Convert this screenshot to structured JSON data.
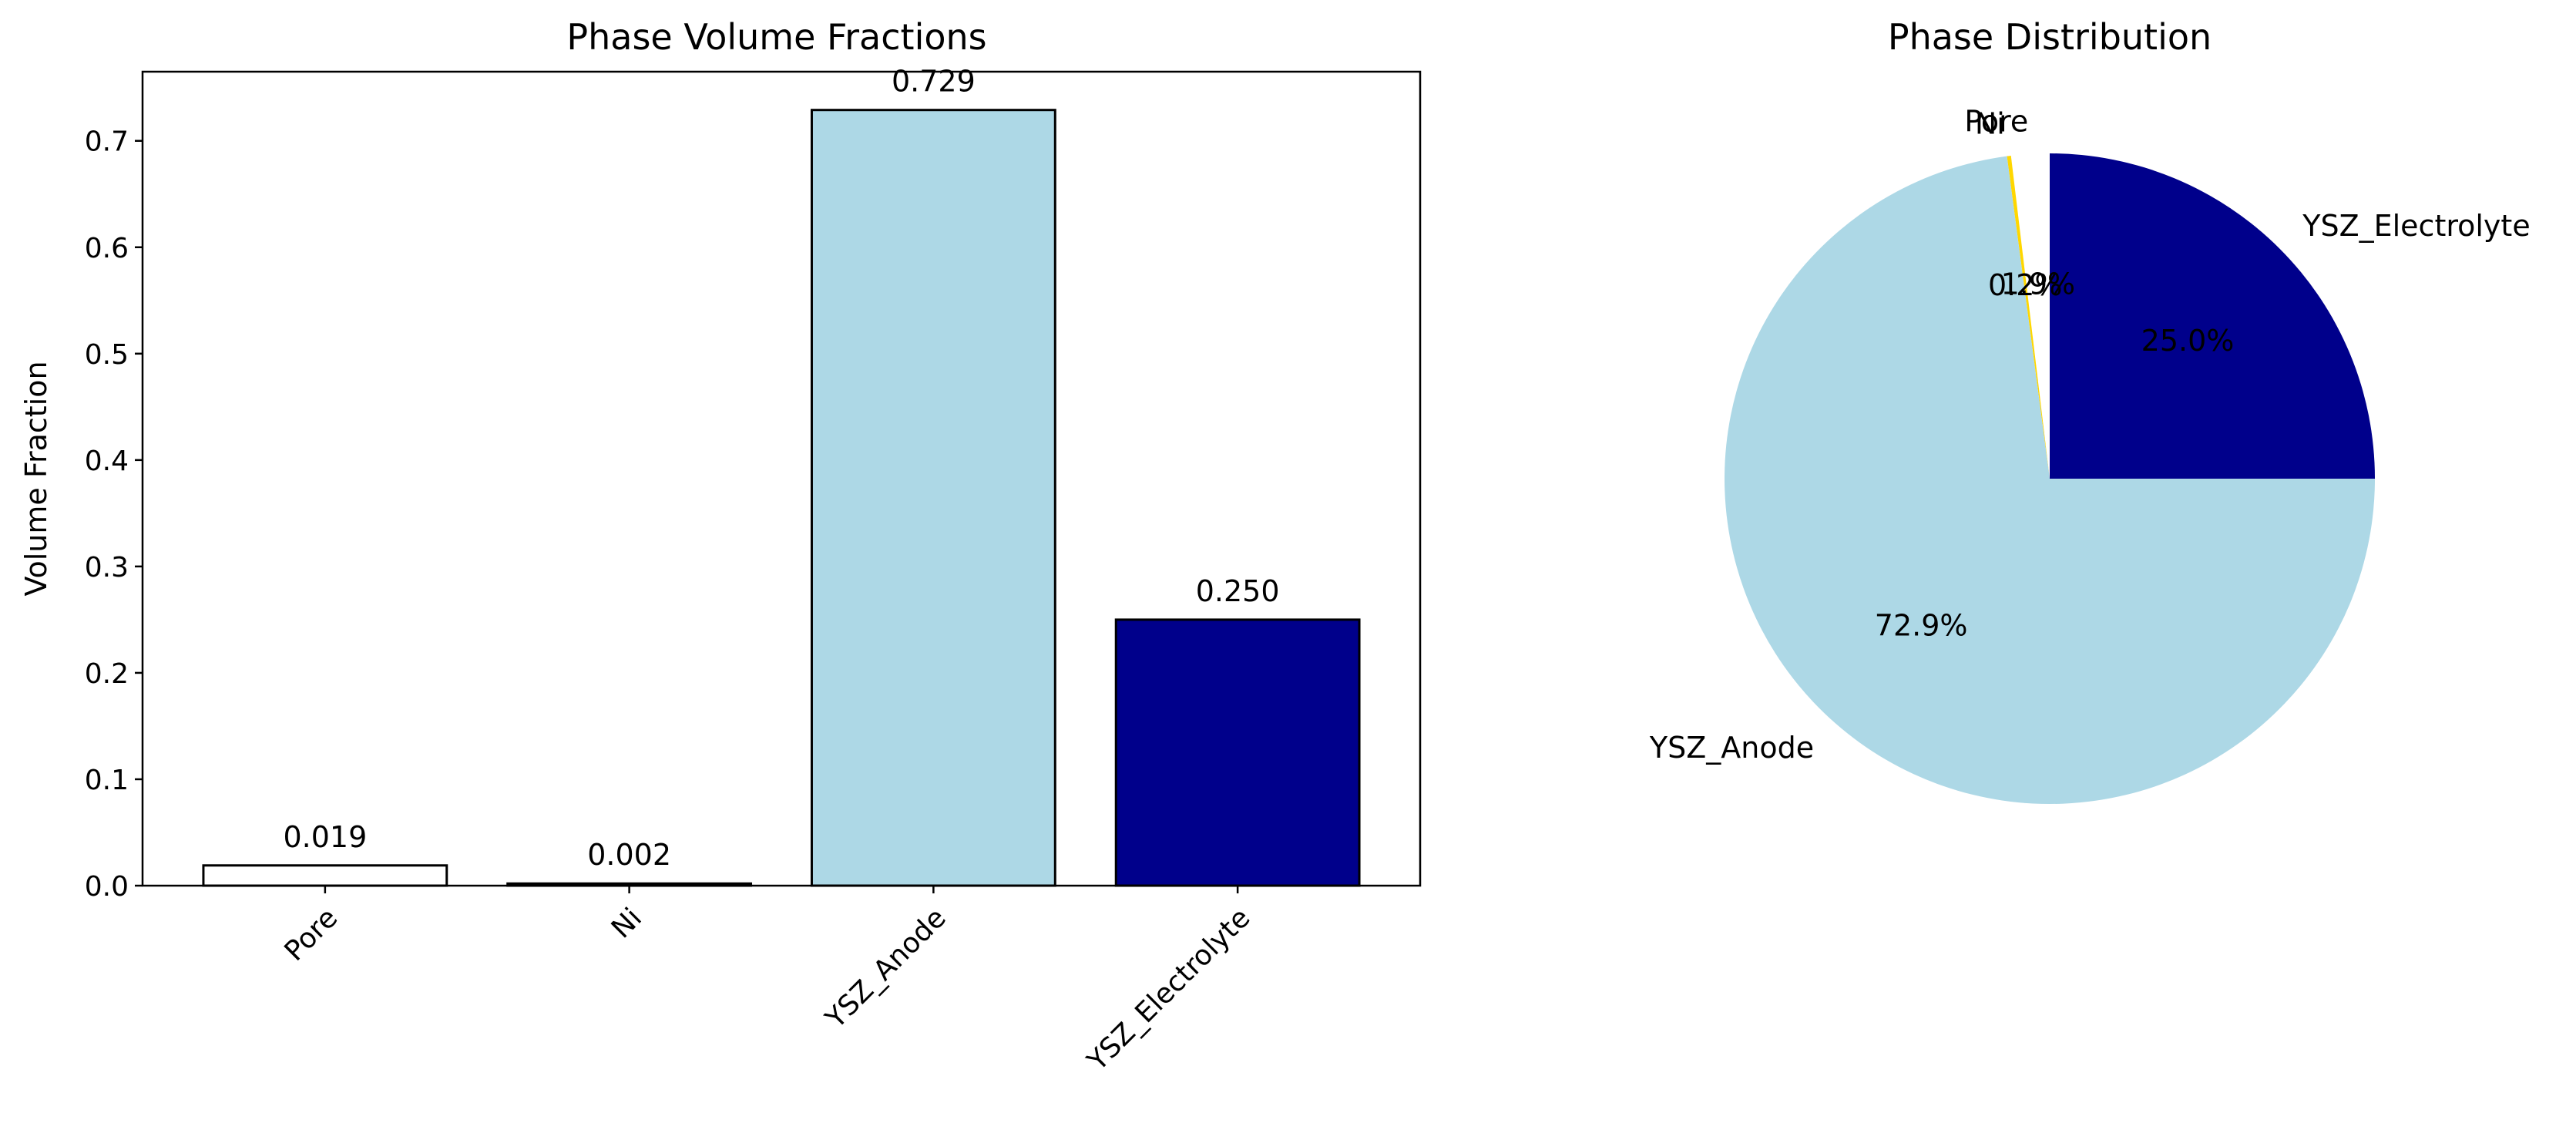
{
  "chart_data": [
    {
      "type": "bar",
      "title": "Phase Volume Fractions",
      "xlabel": "",
      "ylabel": "Volume Fraction",
      "categories": [
        "Pore",
        "Ni",
        "YSZ_Anode",
        "YSZ_Electrolyte"
      ],
      "values": [
        0.019,
        0.002,
        0.729,
        0.25
      ],
      "value_labels": [
        "0.019",
        "0.002",
        "0.729",
        "0.250"
      ],
      "colors": [
        "#ffffff",
        "#ffd700",
        "#add8e6",
        "#00008b"
      ],
      "edge_color": "#000000",
      "ylim": [
        0,
        0.765
      ],
      "yticks": [
        0.0,
        0.1,
        0.2,
        0.3,
        0.4,
        0.5,
        0.6,
        0.7
      ],
      "ytick_labels": [
        "0.0",
        "0.1",
        "0.2",
        "0.3",
        "0.4",
        "0.5",
        "0.6",
        "0.7"
      ],
      "xtick_rotation_deg": 45,
      "grid": false,
      "legend": "none"
    },
    {
      "type": "pie",
      "title": "Phase Distribution",
      "labels": [
        "Pore",
        "Ni",
        "YSZ_Anode",
        "YSZ_Electrolyte"
      ],
      "values": [
        0.019,
        0.002,
        0.729,
        0.25
      ],
      "pct_labels": [
        "1.9%",
        "0.2%",
        "72.9%",
        "25.0%"
      ],
      "colors": [
        "#ffffff",
        "#ffd700",
        "#add8e6",
        "#00008b"
      ],
      "start_angle_deg": 90,
      "direction": "counterclockwise",
      "legend": "none"
    }
  ]
}
